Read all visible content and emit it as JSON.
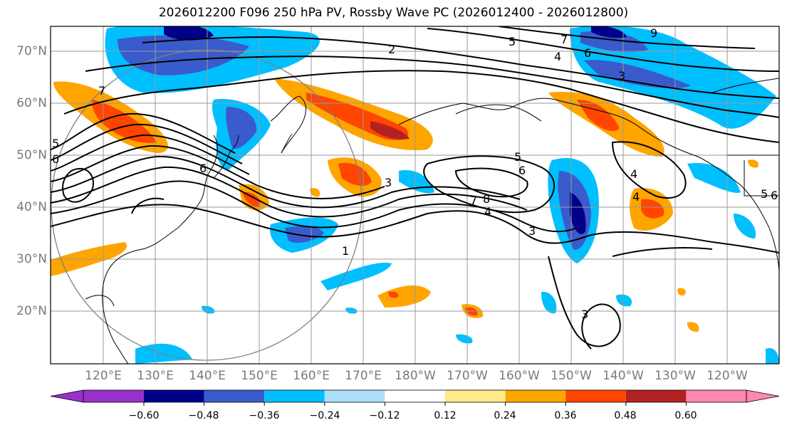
{
  "title": "2026012200 F096 250 hPa PV, Rossby Wave PC (2026012400 - 2026012800)",
  "lat_labels": [
    "70°N",
    "60°N",
    "50°N",
    "40°N",
    "30°N",
    "20°N"
  ],
  "lon_labels": [
    "120°E",
    "130°E",
    "140°E",
    "150°E",
    "160°E",
    "170°E",
    "180°W",
    "170°W",
    "160°W",
    "150°W",
    "140°W",
    "130°W",
    "120°W"
  ],
  "contour_labels": [
    "7",
    "9",
    "6",
    "5",
    "4",
    "3",
    "2",
    "5",
    "6",
    "7",
    "3",
    "6",
    "5",
    "6",
    "4",
    "7",
    "8",
    "4",
    "3",
    "1",
    "5",
    "6",
    "4",
    "3"
  ],
  "colorbar": {
    "ticks": [
      "−0.60",
      "−0.48",
      "−0.36",
      "−0.24",
      "−0.12",
      "0.12",
      "0.24",
      "0.36",
      "0.48",
      "0.60"
    ],
    "colors": [
      "#9932CC",
      "#00008B",
      "#3A5BCB",
      "#00BFFF",
      "#ADDFFA",
      "#FFFFFF",
      "#FFE98A",
      "#FFA500",
      "#FF4500",
      "#B22222",
      "#FF88B0"
    ]
  },
  "colors": {
    "grid": "#9a9a9a",
    "coast": "#000000",
    "contour": "#000000",
    "circle": "#808080"
  }
}
